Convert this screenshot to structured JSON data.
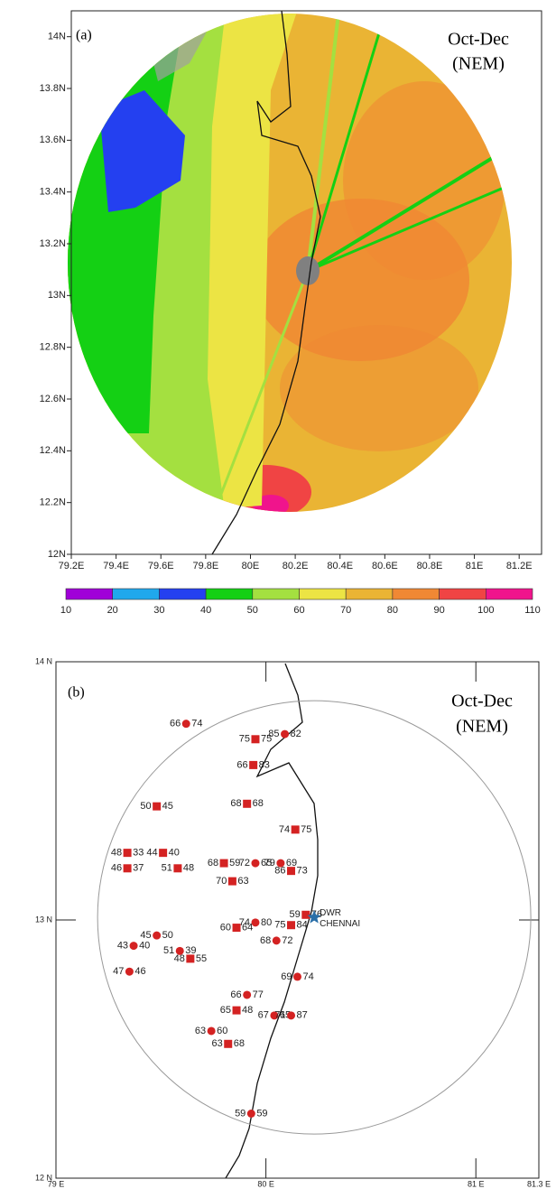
{
  "panel_a": {
    "label": "(a)",
    "title": "Oct-Dec",
    "subtitle": "(NEM)",
    "xlim": [
      79.2,
      81.3
    ],
    "ylim": [
      12,
      14.1
    ],
    "xticks": [
      {
        "value": 79.2,
        "label": "79.2E"
      },
      {
        "value": 79.4,
        "label": "79.4E"
      },
      {
        "value": 79.6,
        "label": "79.6E"
      },
      {
        "value": 79.8,
        "label": "79.8E"
      },
      {
        "value": 80,
        "label": "80E"
      },
      {
        "value": 80.2,
        "label": "80.2E"
      },
      {
        "value": 80.4,
        "label": "80.4E"
      },
      {
        "value": 80.6,
        "label": "80.6E"
      },
      {
        "value": 80.8,
        "label": "80.8E"
      },
      {
        "value": 81,
        "label": "81E"
      },
      {
        "value": 81.2,
        "label": "81.2E"
      }
    ],
    "yticks": [
      {
        "value": 12,
        "label": "12N"
      },
      {
        "value": 12.2,
        "label": "12.2N"
      },
      {
        "value": 12.4,
        "label": "12.4N"
      },
      {
        "value": 12.6,
        "label": "12.6N"
      },
      {
        "value": 12.8,
        "label": "12.8N"
      },
      {
        "value": 13,
        "label": "13N"
      },
      {
        "value": 13.2,
        "label": "13.2N"
      },
      {
        "value": 13.4,
        "label": "13.4N"
      },
      {
        "value": 13.6,
        "label": "13.6N"
      },
      {
        "value": 13.8,
        "label": "13.8N"
      },
      {
        "value": 14,
        "label": "14N"
      }
    ],
    "colorbar": {
      "bounds": [
        10,
        20,
        30,
        40,
        50,
        60,
        70,
        80,
        90,
        100,
        110
      ],
      "colors": [
        "#a000d8",
        "#20a8ec",
        "#2440f0",
        "#14d014",
        "#a4e040",
        "#ece444",
        "#eab434",
        "#f08834",
        "#f04444",
        "#f0148c"
      ]
    }
  },
  "panel_b": {
    "label": "(b)",
    "title": "Oct-Dec",
    "subtitle": "(NEM)",
    "xlim": [
      79,
      81.3
    ],
    "ylim": [
      12,
      14
    ],
    "xticks": [
      {
        "value": 79,
        "label": "79 E"
      },
      {
        "value": 80,
        "label": "80 E"
      },
      {
        "value": 81,
        "label": "81 E"
      },
      {
        "value": 81.3,
        "label": "81.3 E"
      }
    ],
    "yticks": [
      {
        "value": 12,
        "label": "12 N"
      },
      {
        "value": 13,
        "label": "13 N"
      },
      {
        "value": 14,
        "label": "14 N"
      }
    ],
    "radar": {
      "name": "DWR",
      "city": "CHENNAI",
      "lon": 80.23,
      "lat": 13.01,
      "color": "#2a6fa8"
    },
    "marker_color": "#d42222",
    "stations": [
      {
        "marker": "circle",
        "lon": 79.62,
        "lat": 13.76,
        "left": 66,
        "right": 74
      },
      {
        "marker": "square",
        "lon": 79.95,
        "lat": 13.7,
        "left": 75,
        "right": 75
      },
      {
        "marker": "circle",
        "lon": 80.09,
        "lat": 13.72,
        "left": 85,
        "right": 82
      },
      {
        "marker": "square",
        "lon": 79.94,
        "lat": 13.6,
        "left": 66,
        "right": 83
      },
      {
        "marker": "square",
        "lon": 79.48,
        "lat": 13.44,
        "left": 50,
        "right": 45
      },
      {
        "marker": "square",
        "lon": 79.91,
        "lat": 13.45,
        "left": 68,
        "right": 68
      },
      {
        "marker": "square",
        "lon": 80.14,
        "lat": 13.35,
        "left": 74,
        "right": 75
      },
      {
        "marker": "square",
        "lon": 79.8,
        "lat": 13.22,
        "left": 68,
        "right": 59
      },
      {
        "marker": "circle",
        "lon": 79.95,
        "lat": 13.22,
        "left": 72,
        "right": 65
      },
      {
        "marker": "circle",
        "lon": 80.07,
        "lat": 13.22,
        "left": 79,
        "right": 69
      },
      {
        "marker": "square",
        "lon": 80.12,
        "lat": 13.19,
        "left": 86,
        "right": 73
      },
      {
        "marker": "square",
        "lon": 79.84,
        "lat": 13.15,
        "left": 70,
        "right": 63
      },
      {
        "marker": "square",
        "lon": 79.34,
        "lat": 13.26,
        "left": 48,
        "right": 33
      },
      {
        "marker": "square",
        "lon": 79.51,
        "lat": 13.26,
        "left": 44,
        "right": 40
      },
      {
        "marker": "square",
        "lon": 79.34,
        "lat": 13.2,
        "left": 46,
        "right": 37
      },
      {
        "marker": "square",
        "lon": 79.58,
        "lat": 13.2,
        "left": 51,
        "right": 48
      },
      {
        "marker": "square",
        "lon": 80.19,
        "lat": 13.02,
        "left": 59,
        "right": 76
      },
      {
        "marker": "circle",
        "lon": 79.95,
        "lat": 12.99,
        "left": 74,
        "right": 80
      },
      {
        "marker": "square",
        "lon": 79.86,
        "lat": 12.97,
        "left": 60,
        "right": 64
      },
      {
        "marker": "square",
        "lon": 80.12,
        "lat": 12.98,
        "left": 75,
        "right": 84
      },
      {
        "marker": "circle",
        "lon": 80.05,
        "lat": 12.92,
        "left": 68,
        "right": 72
      },
      {
        "marker": "circle",
        "lon": 79.48,
        "lat": 12.94,
        "left": 45,
        "right": 50
      },
      {
        "marker": "circle",
        "lon": 79.37,
        "lat": 12.9,
        "left": 43,
        "right": 40
      },
      {
        "marker": "circle",
        "lon": 79.59,
        "lat": 12.88,
        "left": 51,
        "right": 39
      },
      {
        "marker": "square",
        "lon": 79.64,
        "lat": 12.85,
        "left": 48,
        "right": 55
      },
      {
        "marker": "circle",
        "lon": 79.35,
        "lat": 12.8,
        "left": 47,
        "right": 46
      },
      {
        "marker": "circle",
        "lon": 80.15,
        "lat": 12.78,
        "left": 69,
        "right": 74
      },
      {
        "marker": "circle",
        "lon": 79.91,
        "lat": 12.71,
        "left": 66,
        "right": 77
      },
      {
        "marker": "square",
        "lon": 79.86,
        "lat": 12.65,
        "left": 65,
        "right": 48
      },
      {
        "marker": "circle",
        "lon": 80.04,
        "lat": 12.63,
        "left": 67,
        "right": 65
      },
      {
        "marker": "circle",
        "lon": 80.12,
        "lat": 12.63,
        "left": 71,
        "right": 87
      },
      {
        "marker": "circle",
        "lon": 79.74,
        "lat": 12.57,
        "left": 63,
        "right": 60
      },
      {
        "marker": "square",
        "lon": 79.82,
        "lat": 12.52,
        "left": 63,
        "right": 68
      },
      {
        "marker": "circle",
        "lon": 79.93,
        "lat": 12.25,
        "left": 59,
        "right": 59
      }
    ]
  }
}
